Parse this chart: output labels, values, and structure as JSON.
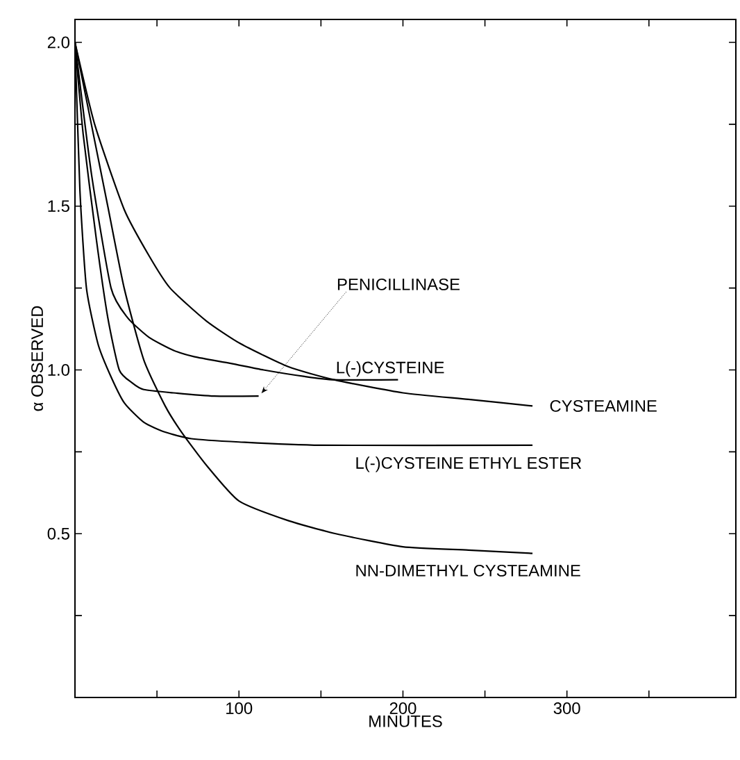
{
  "chart_data": {
    "type": "line",
    "xlabel": "MINUTES",
    "ylabel": "α OBSERVED",
    "xlim": [
      0,
      403
    ],
    "ylim": [
      0,
      2.07
    ],
    "xticks": [
      {
        "value": 50,
        "label": null
      },
      100,
      {
        "value": 150,
        "label": null
      },
      200,
      {
        "value": 250,
        "label": null
      },
      300,
      {
        "value": 350,
        "label": null
      }
    ],
    "yticks": [
      {
        "value": 0.25,
        "label": null
      },
      {
        "value": 0.5,
        "label": "0.5"
      },
      {
        "value": 0.75,
        "label": null
      },
      {
        "value": 1,
        "label": "1.0"
      },
      {
        "value": 1.25,
        "label": null
      },
      {
        "value": 1.5,
        "label": "1.5"
      },
      {
        "value": 1.75,
        "label": null
      },
      {
        "value": 2,
        "label": "2.0"
      }
    ],
    "grid": false,
    "legend": false,
    "marker": "none",
    "line_style": "solid",
    "series": [
      {
        "name": "PENICILLINASE",
        "color": "#000000",
        "x": [
          0,
          5,
          13,
          20,
          27,
          35,
          42,
          60,
          85,
          112
        ],
        "values": [
          2.0,
          1.72,
          1.4,
          1.16,
          1.0,
          0.96,
          0.94,
          0.93,
          0.92,
          0.92
        ]
      },
      {
        "name": "L(-)CYSTEINE",
        "color": "#000000",
        "x": [
          0,
          10,
          22,
          32,
          45,
          60,
          73,
          95,
          115,
          140,
          158,
          197
        ],
        "values": [
          2.0,
          1.6,
          1.25,
          1.16,
          1.1,
          1.06,
          1.04,
          1.02,
          1.0,
          0.98,
          0.97,
          0.97
        ]
      },
      {
        "name": "CYSTEAMINE",
        "color": "#000000",
        "x": [
          0,
          12,
          30,
          45,
          58,
          80,
          101,
          130,
          158,
          200,
          240,
          279
        ],
        "values": [
          2.0,
          1.75,
          1.49,
          1.35,
          1.25,
          1.15,
          1.08,
          1.01,
          0.97,
          0.93,
          0.91,
          0.89
        ]
      },
      {
        "name": "L(-)CYSTEINE ETHYL ESTER",
        "color": "#000000",
        "x": [
          0,
          3,
          7,
          14,
          21,
          30,
          42,
          55,
          71,
          100,
          150,
          279
        ],
        "values": [
          2.0,
          1.55,
          1.25,
          1.08,
          0.99,
          0.9,
          0.84,
          0.81,
          0.79,
          0.78,
          0.77,
          0.77
        ]
      },
      {
        "name": "NN-DIMETHYL CYSTEAMINE",
        "color": "#000000",
        "x": [
          0,
          10,
          20,
          30,
          42,
          55,
          65,
          80,
          100,
          130,
          159,
          200,
          240,
          279
        ],
        "values": [
          2.0,
          1.75,
          1.5,
          1.25,
          1.03,
          0.89,
          0.81,
          0.71,
          0.6,
          0.54,
          0.5,
          0.46,
          0.45,
          0.44
        ]
      }
    ]
  }
}
